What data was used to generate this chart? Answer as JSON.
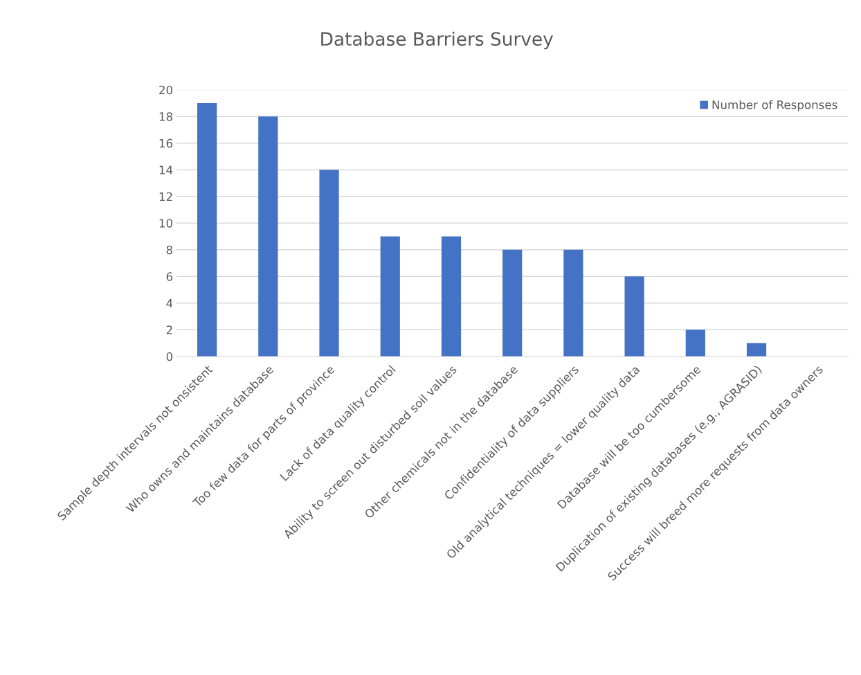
{
  "chart_data": {
    "type": "bar",
    "title": "Database Barriers Survey",
    "categories": [
      "Sample depth intervals not onsistent",
      "Who owns and maintains database",
      "Too few data for parts of province",
      "Lack of data quality control",
      "Ability to screen out disturbed soil values",
      "Other chemicals not in the database",
      "Confidentiality of data suppliers",
      "Old analytical techniques = lower quality data",
      "Database will be too cumbersome",
      "Duplication of existing databases (e.g., AGRASID)",
      "Success will breed more requests from data owners"
    ],
    "series": [
      {
        "name": "Number of Responses",
        "color": "#4472c4",
        "values": [
          19,
          18,
          14,
          9,
          9,
          8,
          8,
          6,
          2,
          1,
          0
        ]
      }
    ],
    "ylim": [
      0,
      20
    ],
    "yticks": [
      0,
      2,
      4,
      6,
      8,
      10,
      12,
      14,
      16,
      18,
      20
    ],
    "grid": "y",
    "legend": "top right"
  }
}
